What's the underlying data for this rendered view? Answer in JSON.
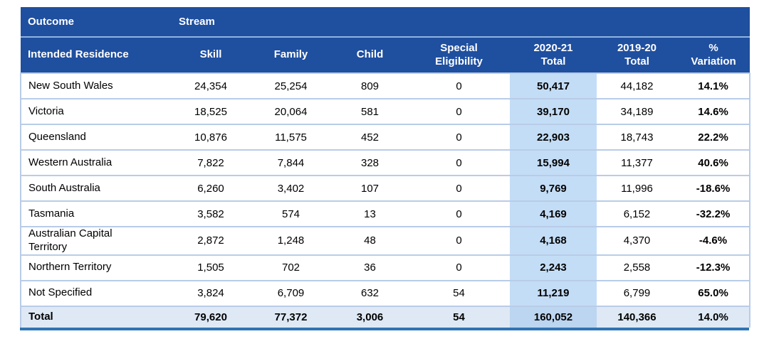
{
  "colors": {
    "header_bg": "#1F4F9F",
    "header_text": "#FFFFFF",
    "header_separator": "#8FB4E0",
    "row_separator": "#B8CCE8",
    "highlight_column_bg": "#C4DDF6",
    "total_row_bg": "#DEE9F5",
    "total_row_highlight_bg": "#BCD5F0",
    "bottom_border": "#2E74B5",
    "body_text": "#000000"
  },
  "table": {
    "group_header": {
      "outcome_label": "Outcome",
      "stream_label": "Stream"
    },
    "column_headers": [
      "Intended Residence",
      "Skill",
      "Family",
      "Child",
      "Special\nEligibility",
      "2020-21\nTotal",
      "2019-20\nTotal",
      "%\nVariation"
    ],
    "rows": [
      {
        "residence": "New South Wales",
        "skill": "24,354",
        "family": "25,254",
        "child": "809",
        "special_eligibility": "0",
        "total_2020_21": "50,417",
        "total_2019_20": "44,182",
        "variation": "14.1%"
      },
      {
        "residence": "Victoria",
        "skill": "18,525",
        "family": "20,064",
        "child": "581",
        "special_eligibility": "0",
        "total_2020_21": "39,170",
        "total_2019_20": "34,189",
        "variation": "14.6%"
      },
      {
        "residence": "Queensland",
        "skill": "10,876",
        "family": "11,575",
        "child": "452",
        "special_eligibility": "0",
        "total_2020_21": "22,903",
        "total_2019_20": "18,743",
        "variation": "22.2%"
      },
      {
        "residence": "Western Australia",
        "skill": "7,822",
        "family": "7,844",
        "child": "328",
        "special_eligibility": "0",
        "total_2020_21": "15,994",
        "total_2019_20": "11,377",
        "variation": "40.6%"
      },
      {
        "residence": "South Australia",
        "skill": "6,260",
        "family": "3,402",
        "child": "107",
        "special_eligibility": "0",
        "total_2020_21": "9,769",
        "total_2019_20": "11,996",
        "variation": "-18.6%"
      },
      {
        "residence": "Tasmania",
        "skill": "3,582",
        "family": "574",
        "child": "13",
        "special_eligibility": "0",
        "total_2020_21": "4,169",
        "total_2019_20": "6,152",
        "variation": "-32.2%"
      },
      {
        "residence": "Australian Capital Territory",
        "skill": "2,872",
        "family": "1,248",
        "child": "48",
        "special_eligibility": "0",
        "total_2020_21": "4,168",
        "total_2019_20": "4,370",
        "variation": "-4.6%"
      },
      {
        "residence": "Northern Territory",
        "skill": "1,505",
        "family": "702",
        "child": "36",
        "special_eligibility": "0",
        "total_2020_21": "2,243",
        "total_2019_20": "2,558",
        "variation": "-12.3%"
      },
      {
        "residence": "Not Specified",
        "skill": "3,824",
        "family": "6,709",
        "child": "632",
        "special_eligibility": "54",
        "total_2020_21": "11,219",
        "total_2019_20": "6,799",
        "variation": "65.0%"
      }
    ],
    "total_row": {
      "residence": "Total",
      "skill": "79,620",
      "family": "77,372",
      "child": "3,006",
      "special_eligibility": "54",
      "total_2020_21": "160,052",
      "total_2019_20": "140,366",
      "variation": "14.0%"
    }
  }
}
